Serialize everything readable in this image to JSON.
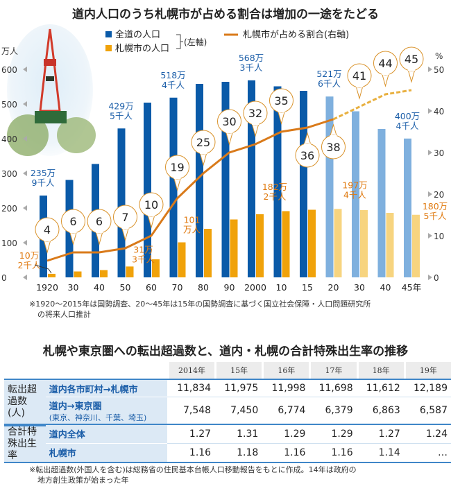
{
  "chart_data": {
    "type": "bar",
    "title": "道内人口のうち札幌市が占める割合は増加の一途をたどる",
    "categories": [
      "1920",
      "30",
      "40",
      "50",
      "60",
      "70",
      "80",
      "90",
      "2000",
      "10",
      "15",
      "20",
      "30",
      "40",
      "45年"
    ],
    "projection_from_index": 11,
    "series": [
      {
        "name": "全道の人口",
        "axis": "left",
        "color": "#0a5aa8",
        "projection_color": "#7fb0de",
        "values": [
          235.9,
          281,
          327,
          429.5,
          504,
          518.4,
          558,
          564,
          568.3,
          551,
          538,
          521.6,
          479,
          428,
          400.4
        ]
      },
      {
        "name": "札幌市の人口",
        "axis": "left",
        "color": "#f0a20a",
        "projection_color": "#f7d47f",
        "values": [
          10.2,
          17,
          21,
          31.3,
          52,
          101,
          140,
          167,
          182.2,
          191,
          195,
          197.4,
          194,
          186,
          180.5
        ]
      },
      {
        "name": "札幌市が占める割合(右軸)",
        "axis": "right",
        "type": "line",
        "color": "#d97a1a",
        "values": [
          4,
          6,
          6,
          7,
          10,
          19,
          25,
          30,
          32,
          35,
          36,
          38,
          41,
          44,
          45
        ]
      }
    ],
    "legend": {
      "total": "全道の人口",
      "sapporo": "札幌市の人口",
      "left_axis_note": "(左軸)",
      "line": "札幌市が占める割合(右軸)",
      "placement": "top"
    },
    "ylabel_left": "万人",
    "ylim_left": [
      0,
      600
    ],
    "yticks_left": [
      "0",
      "100",
      "200",
      "300",
      "400",
      "500",
      "600"
    ],
    "ylabel_right": "%",
    "ylim_right": [
      0,
      50
    ],
    "yticks_right": [
      "0",
      "10",
      "20",
      "30",
      "40",
      "50"
    ],
    "annotations": [
      {
        "series": 0,
        "index": 0,
        "lines": [
          "235万",
          "9千人"
        ]
      },
      {
        "series": 0,
        "index": 3,
        "lines": [
          "429万",
          "5千人"
        ]
      },
      {
        "series": 0,
        "index": 5,
        "lines": [
          "518万",
          "4千人"
        ]
      },
      {
        "series": 0,
        "index": 8,
        "lines": [
          "568万",
          "3千人"
        ]
      },
      {
        "series": 0,
        "index": 11,
        "lines": [
          "521万",
          "6千人"
        ]
      },
      {
        "series": 0,
        "index": 14,
        "lines": [
          "400万",
          "4千人"
        ]
      },
      {
        "series": 1,
        "index": 0,
        "lines": [
          "10万",
          "2千人"
        ]
      },
      {
        "series": 1,
        "index": 3,
        "lines": [
          "31万",
          "3千人"
        ]
      },
      {
        "series": 1,
        "index": 5,
        "lines": [
          "101",
          "万人"
        ]
      },
      {
        "series": 1,
        "index": 8,
        "lines": [
          "182万",
          "2千人"
        ]
      },
      {
        "series": 1,
        "index": 11,
        "lines": [
          "197万",
          "4千人"
        ]
      },
      {
        "series": 1,
        "index": 14,
        "lines": [
          "180万",
          "5千人"
        ]
      }
    ],
    "footnote": [
      "※1920～2015年は国勢調査、20～45年は15年の国勢調査に基づく国立社会保障・人口問題研究所",
      "の将来人口推計"
    ]
  },
  "table": {
    "title": "札幌や東京圏への転出超過数と、道内・札幌の合計特殊出生率の推移",
    "years": [
      "2014年",
      "15年",
      "16年",
      "17年",
      "18年",
      "19年"
    ],
    "group1": "転出超過数(人)",
    "group2": "合計特殊出生率",
    "rows": [
      {
        "label": "道内各市町村→札幌市",
        "values": [
          "11,834",
          "11,975",
          "11,998",
          "11,698",
          "11,612",
          "12,189"
        ]
      },
      {
        "label": "道内→東京圏",
        "sub": "(東京、神奈川、千葉、埼玉)",
        "values": [
          "7,548",
          "7,450",
          "6,774",
          "6,379",
          "6,863",
          "6,587"
        ]
      },
      {
        "label": "道内全体",
        "values": [
          "1.27",
          "1.31",
          "1.29",
          "1.29",
          "1.27",
          "1.24"
        ]
      },
      {
        "label": "札幌市",
        "values": [
          "1.16",
          "1.18",
          "1.16",
          "1.16",
          "1.14",
          "…"
        ]
      }
    ],
    "footnote": [
      "※転出超過数(外国人を含む)は総務省の住民基本台帳人口移動報告をもとに作成。14年は政府の",
      "地方創生政策が始まった年"
    ]
  }
}
